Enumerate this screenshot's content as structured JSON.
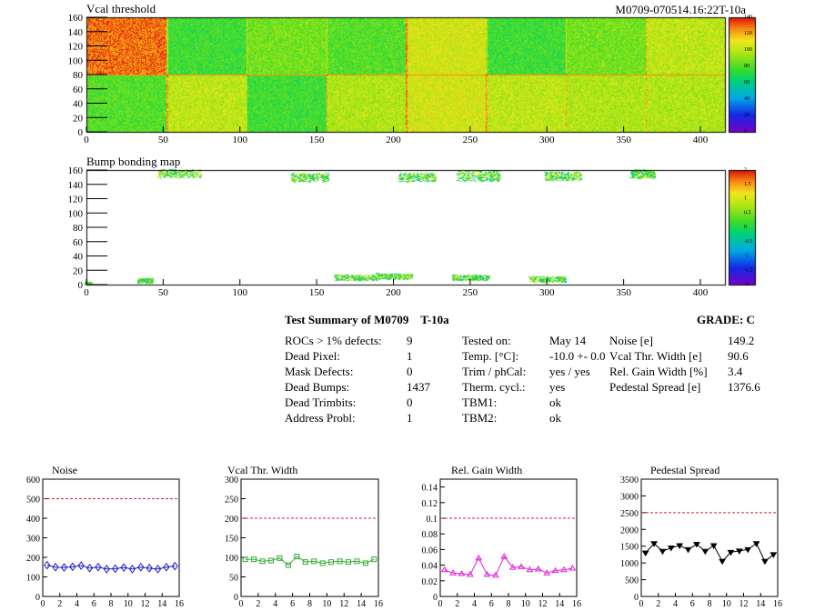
{
  "top_map": {
    "title": "Vcal threshold",
    "run_label": "M0709-070514.16:22T-10a",
    "y_ticks": [
      "0",
      "20",
      "40",
      "60",
      "80",
      "100",
      "120",
      "140",
      "160"
    ],
    "x_ticks": [
      "0",
      "50",
      "100",
      "150",
      "200",
      "250",
      "300",
      "350",
      "400"
    ],
    "z_ticks": [
      "0",
      "20",
      "40",
      "60",
      "80",
      "100",
      "120",
      "140"
    ]
  },
  "bump_map": {
    "title": "Bump bonding map",
    "y_ticks": [
      "0",
      "20",
      "40",
      "60",
      "80",
      "100",
      "120",
      "140",
      "160"
    ],
    "x_ticks": [
      "0",
      "50",
      "100",
      "150",
      "200",
      "250",
      "300",
      "350",
      "400"
    ],
    "z_ticks": [
      "-2",
      "-1.5",
      "-1",
      "-0.5",
      "0",
      "0.5",
      "1",
      "1.5",
      "2"
    ]
  },
  "summary": {
    "title": "Test Summary of M0709",
    "temp_label": "T-10a",
    "grade": "GRADE:  C",
    "col1": [
      {
        "label": "ROCs > 1% defects:",
        "value": "9"
      },
      {
        "label": "Dead Pixel:",
        "value": "1"
      },
      {
        "label": "Mask Defects:",
        "value": "0"
      },
      {
        "label": "Dead Bumps:",
        "value": "1437"
      },
      {
        "label": "Dead Trimbits:",
        "value": "0"
      },
      {
        "label": "Address Probl:",
        "value": "1"
      }
    ],
    "col2": [
      {
        "label": "Tested on:",
        "value": "May 14"
      },
      {
        "label": "Temp. [°C]:",
        "value": "-10.0 +- 0.0"
      },
      {
        "label": "Trim / phCal:",
        "value": "yes / yes"
      },
      {
        "label": "Therm. cycl.:",
        "value": "yes"
      },
      {
        "label": "TBM1:",
        "value": "ok"
      },
      {
        "label": "TBM2:",
        "value": "ok"
      }
    ],
    "col3": [
      {
        "label": "Noise [e]",
        "value": "149.2"
      },
      {
        "label": "Vcal Thr. Width [e]",
        "value": "90.6"
      },
      {
        "label": "Rel. Gain Width [%]",
        "value": "3.4"
      },
      {
        "label": "Pedestal Spread [e]",
        "value": "1376.6"
      }
    ]
  },
  "chart_data": [
    {
      "type": "heatmap",
      "title": "Vcal threshold",
      "xlim": [
        0,
        416
      ],
      "ylim": [
        0,
        160
      ],
      "zlim": [
        0,
        150
      ]
    },
    {
      "type": "heatmap",
      "title": "Bump bonding map",
      "xlim": [
        0,
        416
      ],
      "ylim": [
        0,
        160
      ],
      "zlim": [
        -2,
        2
      ]
    },
    {
      "type": "line",
      "title": "Noise",
      "color": "#1a1acc",
      "marker": "diamond",
      "ylim": [
        0,
        600
      ],
      "xlim": [
        0,
        16
      ],
      "y_ticks": [
        "0",
        "100",
        "200",
        "300",
        "400",
        "500",
        "600"
      ],
      "x_ticks": [
        "0",
        "2",
        "4",
        "6",
        "8",
        "10",
        "12",
        "14",
        "16"
      ],
      "threshold": 500,
      "x": [
        0.5,
        1.5,
        2.5,
        3.5,
        4.5,
        5.5,
        6.5,
        7.5,
        8.5,
        9.5,
        10.5,
        11.5,
        12.5,
        13.5,
        14.5,
        15.5
      ],
      "values": [
        160,
        150,
        148,
        152,
        158,
        145,
        150,
        140,
        142,
        148,
        140,
        150,
        145,
        140,
        150,
        155
      ]
    },
    {
      "type": "line",
      "title": "Vcal Thr. Width",
      "color": "#33aa33",
      "marker": "square",
      "ylim": [
        0,
        300
      ],
      "xlim": [
        0,
        16
      ],
      "y_ticks": [
        "0",
        "50",
        "100",
        "150",
        "200",
        "250",
        "300"
      ],
      "x_ticks": [
        "0",
        "2",
        "4",
        "6",
        "8",
        "10",
        "12",
        "14",
        "16"
      ],
      "threshold": 200,
      "x": [
        0.5,
        1.5,
        2.5,
        3.5,
        4.5,
        5.5,
        6.5,
        7.5,
        8.5,
        9.5,
        10.5,
        11.5,
        12.5,
        13.5,
        14.5,
        15.5
      ],
      "values": [
        95,
        95,
        90,
        92,
        98,
        80,
        102,
        88,
        90,
        85,
        88,
        90,
        88,
        90,
        85,
        95
      ]
    },
    {
      "type": "line",
      "title": "Rel. Gain Width",
      "color": "#dd22dd",
      "marker": "triangle",
      "ylim": [
        0,
        0.15
      ],
      "xlim": [
        0,
        16
      ],
      "y_ticks": [
        "0",
        "0.02",
        "0.04",
        "0.06",
        "0.08",
        "0.1",
        "0.12",
        "0.14"
      ],
      "x_ticks": [
        "0",
        "2",
        "4",
        "6",
        "8",
        "10",
        "12",
        "14",
        "16"
      ],
      "threshold": 0.1,
      "x": [
        0.5,
        1.5,
        2.5,
        3.5,
        4.5,
        5.5,
        6.5,
        7.5,
        8.5,
        9.5,
        10.5,
        11.5,
        12.5,
        13.5,
        14.5,
        15.5
      ],
      "values": [
        0.034,
        0.03,
        0.029,
        0.028,
        0.049,
        0.028,
        0.027,
        0.051,
        0.037,
        0.038,
        0.034,
        0.035,
        0.03,
        0.033,
        0.034,
        0.036
      ]
    },
    {
      "type": "line",
      "title": "Pedestal Spread",
      "color": "#000000",
      "marker": "triangle-down",
      "ylim": [
        0,
        3500
      ],
      "xlim": [
        0,
        16
      ],
      "y_ticks": [
        "0",
        "500",
        "1000",
        "1500",
        "2000",
        "2500",
        "3000",
        "3500"
      ],
      "x_ticks": [
        "0",
        "2",
        "4",
        "6",
        "8",
        "10",
        "12",
        "14",
        "16"
      ],
      "threshold": 2500,
      "x": [
        0.5,
        1.5,
        2.5,
        3.5,
        4.5,
        5.5,
        6.5,
        7.5,
        8.5,
        9.5,
        10.5,
        11.5,
        12.5,
        13.5,
        14.5,
        15.5
      ],
      "values": [
        1300,
        1580,
        1350,
        1450,
        1520,
        1400,
        1560,
        1350,
        1520,
        1050,
        1320,
        1360,
        1400,
        1580,
        1050,
        1250
      ]
    }
  ]
}
